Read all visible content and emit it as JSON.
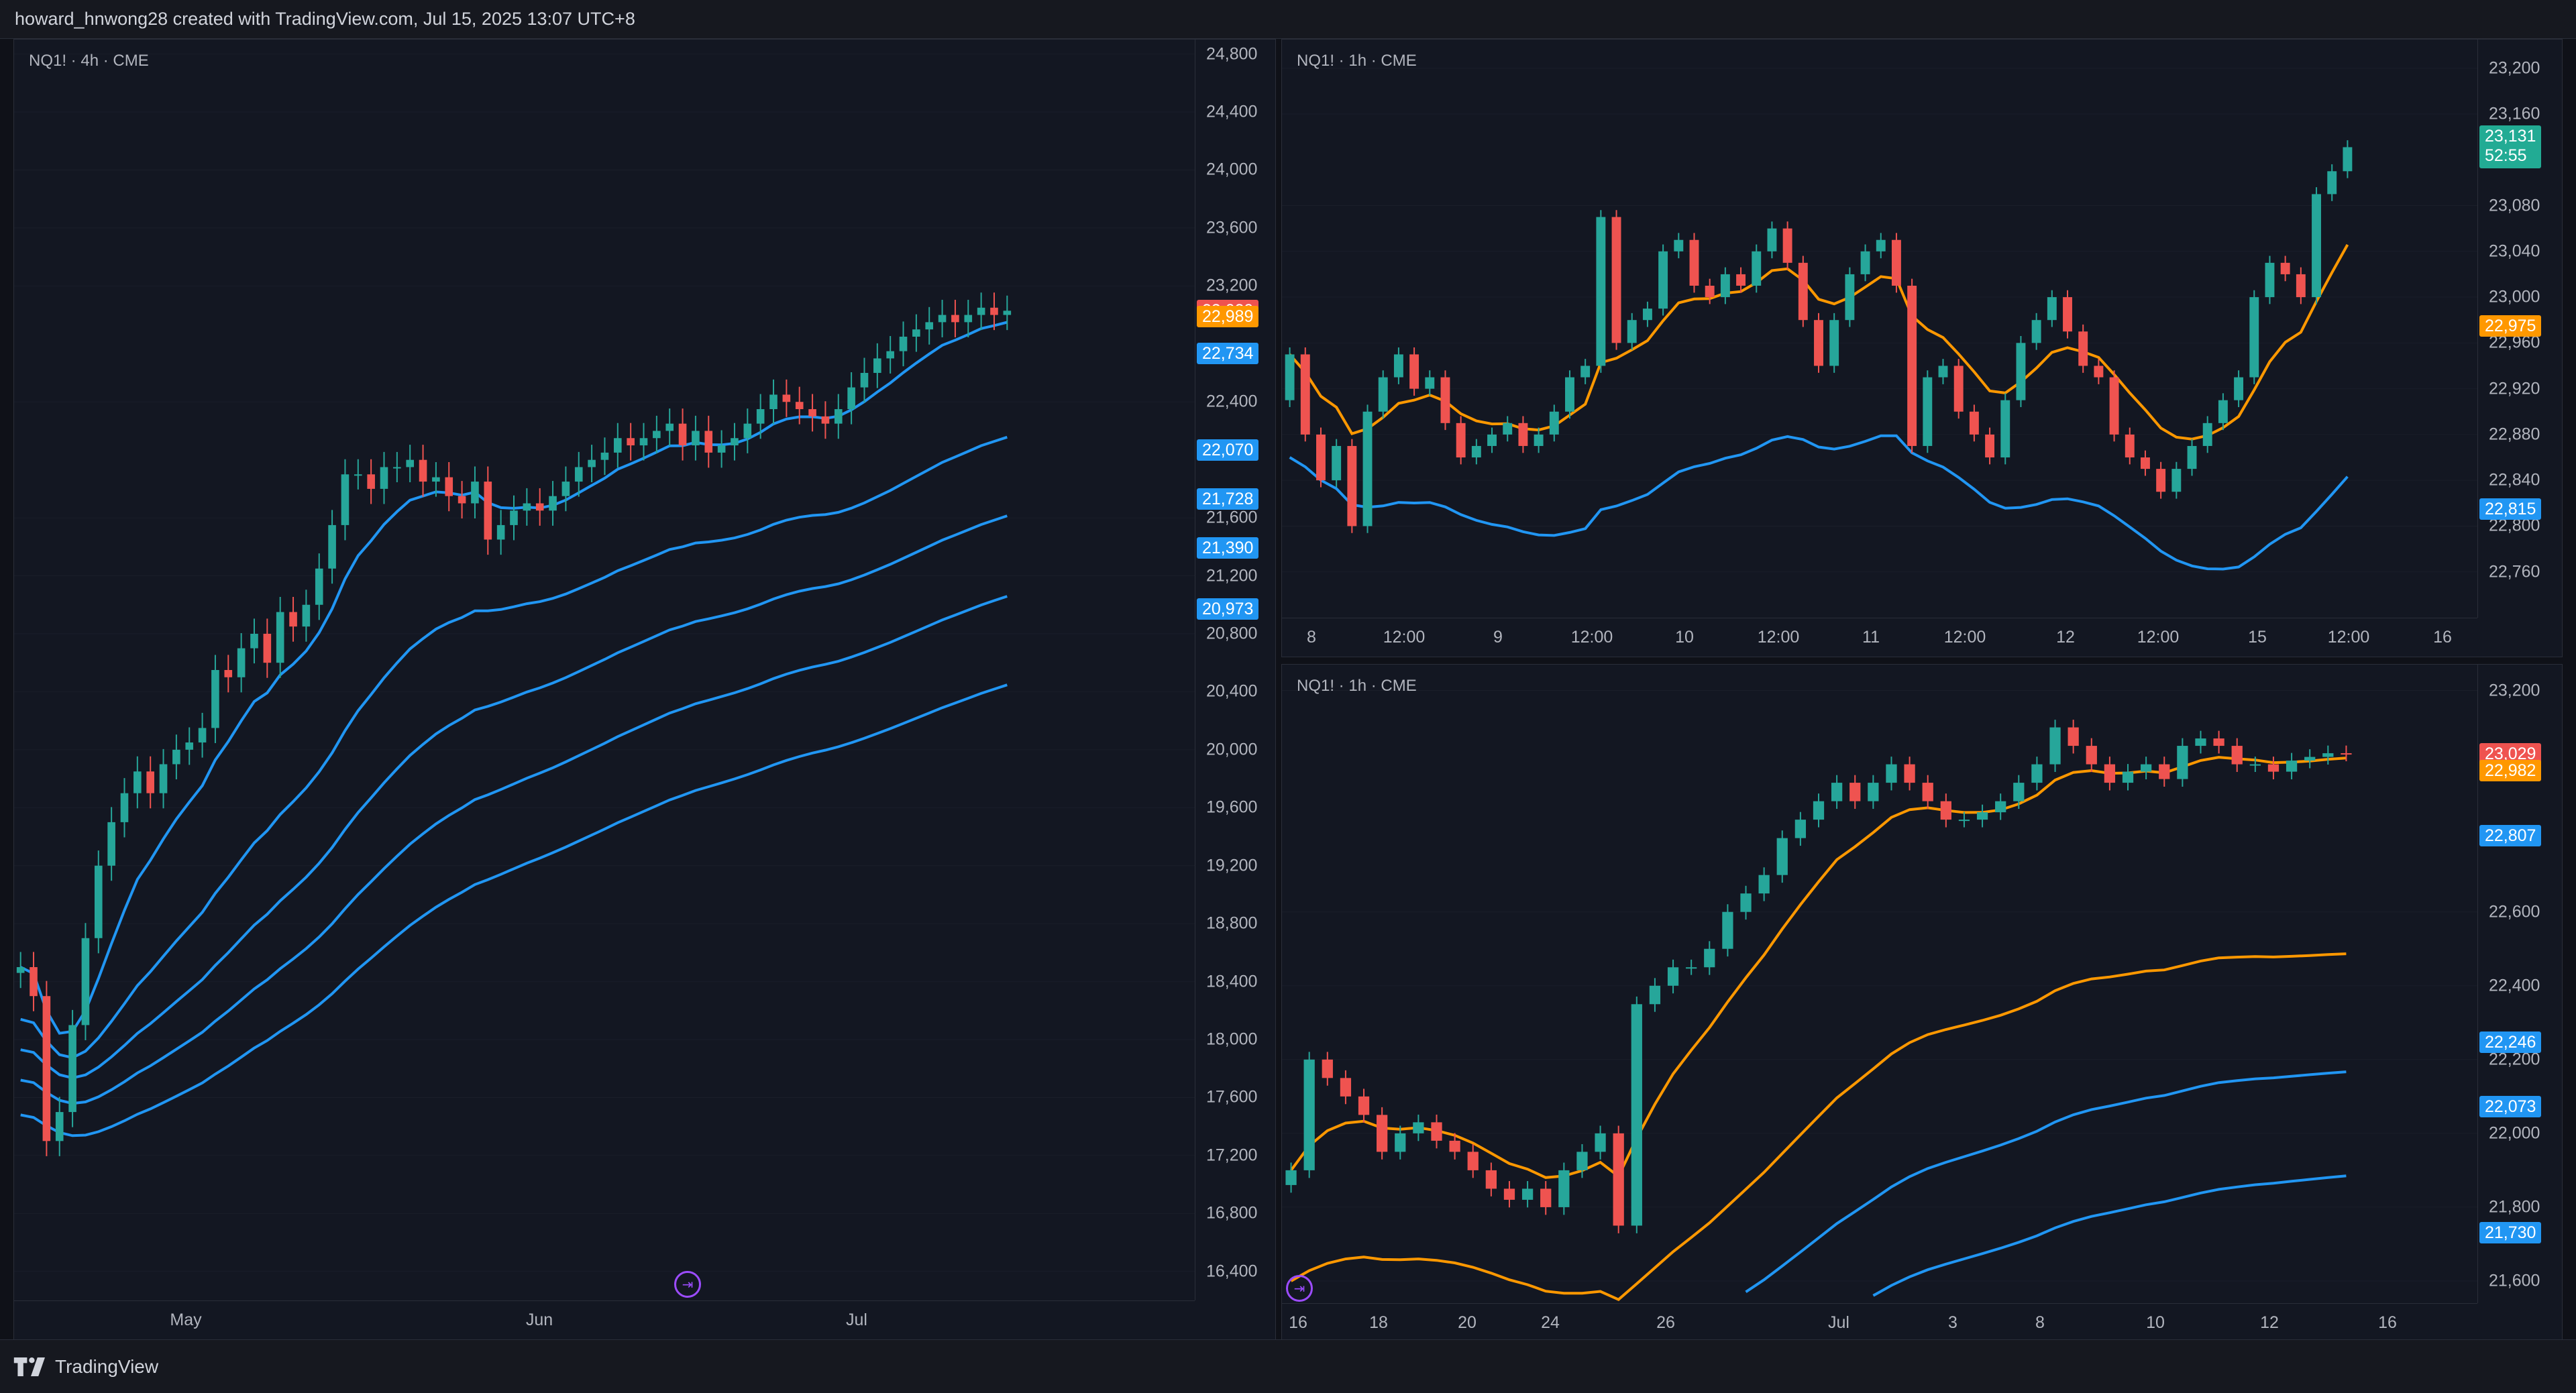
{
  "header": {
    "attribution": "howard_hnwong28 created with TradingView.com, Jul 15, 2025 13:07 UTC+8"
  },
  "footer": {
    "brand": "TradingView"
  },
  "colors": {
    "up": "#26a69a",
    "down": "#ef5350",
    "blue_ma": "#2196f3",
    "orange_ma": "#ff9800",
    "background": "#131722",
    "badge_red": "#ef5350",
    "badge_orange": "#ff9800",
    "badge_blue": "#2196f3",
    "badge_green": "#22ab94"
  },
  "panes": {
    "left": {
      "legend": "NQ1! · 4h · CME",
      "y_ticks": [
        "24,800",
        "24,400",
        "24,000",
        "23,600",
        "23,200",
        "22,400",
        "21,600",
        "21,200",
        "20,800",
        "20,400",
        "20,000",
        "19,600",
        "19,200",
        "18,800",
        "18,400",
        "18,000",
        "17,600",
        "17,200",
        "16,800",
        "16,400"
      ],
      "x_ticks": [
        "May",
        "Jun",
        "Jul"
      ],
      "badges": [
        {
          "text": "23,029",
          "color": "red"
        },
        {
          "text": "22,989",
          "color": "orange"
        },
        {
          "text": "22,734",
          "color": "blue"
        },
        {
          "text": "22,070",
          "color": "blue"
        },
        {
          "text": "21,728",
          "color": "blue"
        },
        {
          "text": "21,390",
          "color": "blue"
        },
        {
          "text": "20,973",
          "color": "blue"
        }
      ]
    },
    "top_right": {
      "legend": "NQ1! · 1h · CME",
      "y_ticks": [
        "23,200",
        "23,160",
        "23,080",
        "23,040",
        "23,000",
        "22,960",
        "22,920",
        "22,880",
        "22,840",
        "22,800",
        "22,760"
      ],
      "x_ticks": [
        "8",
        "12:00",
        "9",
        "12:00",
        "10",
        "12:00",
        "11",
        "12:00",
        "12",
        "12:00",
        "15",
        "12:00",
        "16"
      ],
      "badges": [
        {
          "text": "23,131",
          "subtext": "52:55",
          "color": "green"
        },
        {
          "text": "22,975",
          "color": "orange"
        },
        {
          "text": "22,815",
          "color": "blue"
        }
      ]
    },
    "bottom_right": {
      "legend": "NQ1! · 1h · CME",
      "y_ticks": [
        "23,200",
        "22,600",
        "22,400",
        "22,200",
        "22,000",
        "21,800",
        "21,600"
      ],
      "x_ticks": [
        "16",
        "18",
        "20",
        "24",
        "26",
        "Jul",
        "3",
        "8",
        "10",
        "12",
        "16"
      ],
      "badges": [
        {
          "text": "23,029",
          "color": "red"
        },
        {
          "text": "22,982",
          "color": "orange"
        },
        {
          "text": "22,807",
          "color": "blue"
        },
        {
          "text": "22,246",
          "color": "blue"
        },
        {
          "text": "22,073",
          "color": "blue"
        },
        {
          "text": "21,730",
          "color": "blue"
        }
      ]
    }
  },
  "chart_data": [
    {
      "type": "candlestick",
      "title": "NQ1! · 4h · CME",
      "ylim": [
        16200,
        24900
      ],
      "x_range": [
        "Apr",
        "Jul"
      ],
      "closes": [
        18500,
        18300,
        17300,
        17500,
        18100,
        18700,
        19200,
        19500,
        19700,
        19850,
        19700,
        19900,
        20000,
        20050,
        20150,
        20550,
        20500,
        20700,
        20800,
        20600,
        20950,
        20850,
        21000,
        21250,
        21550,
        21900,
        21900,
        21800,
        21950,
        21950,
        22000,
        21850,
        21880,
        21750,
        21700,
        21850,
        21450,
        21550,
        21650,
        21700,
        21650,
        21750,
        21850,
        21950,
        22000,
        22050,
        22150,
        22100,
        22150,
        22200,
        22250,
        22100,
        22200,
        22050,
        22100,
        22150,
        22250,
        22350,
        22450,
        22400,
        22350,
        22300,
        22250,
        22350,
        22500,
        22600,
        22700,
        22750,
        22850,
        22900,
        22950,
        23000,
        22950,
        23000,
        23050,
        23000,
        23029
      ]
    },
    {
      "type": "candlestick",
      "title": "NQ1! · 1h · CME",
      "ylim": [
        22720,
        23225
      ],
      "x_range": [
        "8",
        "16"
      ],
      "closes": [
        22950,
        22880,
        22840,
        22870,
        22800,
        22900,
        22930,
        22950,
        22920,
        22930,
        22890,
        22860,
        22870,
        22880,
        22890,
        22870,
        22880,
        22900,
        22930,
        22940,
        23070,
        22960,
        22980,
        22990,
        23040,
        23050,
        23010,
        23000,
        23020,
        23010,
        23040,
        23060,
        23030,
        22980,
        22940,
        22980,
        23020,
        23040,
        23050,
        23010,
        22870,
        22930,
        22940,
        22900,
        22880,
        22860,
        22910,
        22960,
        22980,
        23000,
        22970,
        22940,
        22930,
        22880,
        22860,
        22850,
        22830,
        22850,
        22870,
        22890,
        22910,
        22930,
        23000,
        23030,
        23020,
        23000,
        23090,
        23110,
        23131
      ]
    },
    {
      "type": "candlestick",
      "title": "NQ1! · 1h · CME",
      "ylim": [
        21540,
        23270
      ],
      "x_range": [
        "16",
        "16"
      ],
      "closes": [
        21900,
        22200,
        22150,
        22100,
        22050,
        21950,
        22000,
        22030,
        21980,
        21950,
        21900,
        21850,
        21820,
        21850,
        21800,
        21900,
        21950,
        22000,
        21750,
        22350,
        22400,
        22450,
        22450,
        22500,
        22600,
        22650,
        22700,
        22800,
        22850,
        22900,
        22950,
        22900,
        22950,
        23000,
        22950,
        22900,
        22850,
        22850,
        22870,
        22900,
        22950,
        23000,
        23100,
        23050,
        23000,
        22950,
        22980,
        23000,
        22960,
        23050,
        23070,
        23050,
        23000,
        23000,
        22980,
        23010,
        23020,
        23030,
        23029
      ]
    }
  ]
}
